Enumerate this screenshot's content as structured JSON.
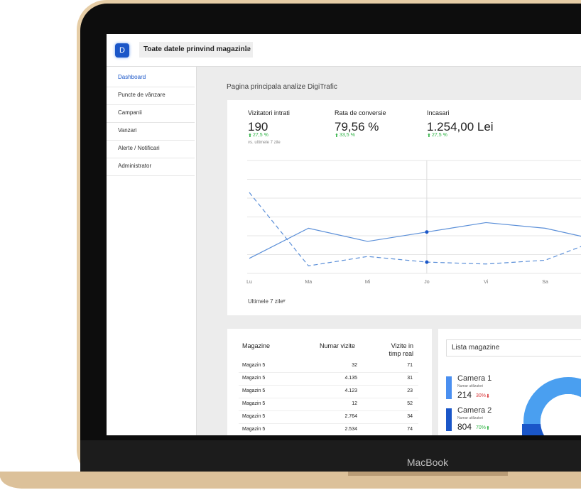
{
  "header": {
    "logo": "D",
    "store_select": "Toate datele prinvind magazinle"
  },
  "sidebar": {
    "items": [
      "Dashboard",
      "Puncte de vânzare",
      "Campanii",
      "Vanzari",
      "Alerte / Notificari",
      "Administrator"
    ],
    "active": 0
  },
  "page_title": "Pagina principala analize DigiTrafic",
  "kpis": [
    {
      "label": "Vizitatori intrati",
      "value": "190",
      "change": "27,5 %",
      "note": "vs. ultimele 7 zile"
    },
    {
      "label": "Rata de conversie",
      "value": "79,56 %",
      "change": "33,5 %"
    },
    {
      "label": "Incasari",
      "value": "1.254,00 Lei",
      "change": "27,5 %"
    }
  ],
  "chart_data": {
    "type": "line",
    "categories": [
      "Lu",
      "Ma",
      "Mi",
      "Jo",
      "Vi",
      "Sa",
      null
    ],
    "series": [
      {
        "color": "#5b8fd8",
        "style": "solid",
        "values": [
          0.8,
          2.4,
          1.7,
          2.2,
          2.7,
          2.4,
          1.7
        ]
      },
      {
        "color": "#5b8fd8",
        "style": "dashed",
        "values": [
          4.3,
          0.4,
          0.9,
          0.6,
          0.5,
          0.7,
          1.9
        ]
      }
    ],
    "ylim": [
      0,
      6
    ],
    "marker_index": 3,
    "period": "Ultimele 7 zile"
  },
  "table": {
    "headers": [
      "Magazine",
      "Numar vizite",
      "Vizite in timp real"
    ],
    "rows": [
      [
        "Magazin 5",
        "32",
        "71"
      ],
      [
        "Magazin 5",
        "4.135",
        "31"
      ],
      [
        "Magazin 5",
        "4.123",
        "23"
      ],
      [
        "Magazin 5",
        "12",
        "52"
      ],
      [
        "Magazin 5",
        "2.764",
        "34"
      ],
      [
        "Magazin 5",
        "2.534",
        "74"
      ]
    ]
  },
  "stores_panel": {
    "search": "Lista magazine",
    "cameras": [
      {
        "name": "Camera 1",
        "caption": "Numar utilizatori",
        "count": "214",
        "change": "30%",
        "trend": "down",
        "color": "#4a8ff0"
      },
      {
        "name": "Camera 2",
        "caption": "Numar utilizatori",
        "count": "804",
        "change": "70%",
        "trend": "up",
        "color": "#1a56c8"
      }
    ]
  },
  "device_label": "MacBook"
}
